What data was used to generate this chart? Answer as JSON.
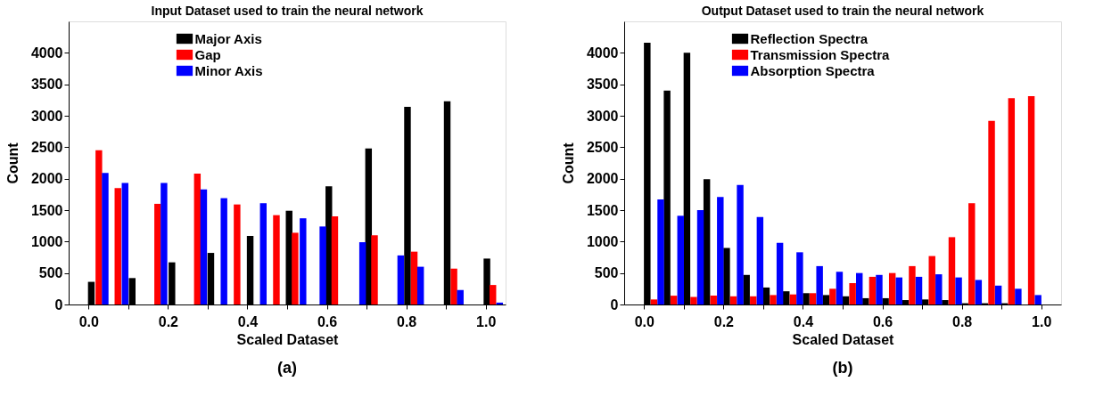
{
  "chart_data": [
    {
      "type": "bar",
      "title": "Input Dataset used to train the neural network",
      "xlabel": "Scaled Dataset",
      "ylabel": "Count",
      "xlim": [
        -0.05,
        1.05
      ],
      "ylim": [
        0,
        4500
      ],
      "xticks": [
        {
          "value": 0,
          "label": "0.0"
        },
        {
          "value": 0.1,
          "label": null
        },
        {
          "value": 0.2,
          "label": "0.2"
        },
        {
          "value": 0.3,
          "label": null
        },
        {
          "value": 0.4,
          "label": "0.4"
        },
        {
          "value": 0.5,
          "label": null
        },
        {
          "value": 0.6,
          "label": "0.6"
        },
        {
          "value": 0.7,
          "label": null
        },
        {
          "value": 0.8,
          "label": "0.8"
        },
        {
          "value": 0.9,
          "label": null
        },
        {
          "value": 1,
          "label": "1.0"
        }
      ],
      "yticks": [
        0,
        500,
        1000,
        1500,
        2000,
        2500,
        3000,
        3500,
        4000
      ],
      "legend": "top",
      "annotations": [
        "(a)"
      ],
      "series": [
        {
          "name": "Major Axis",
          "color": "#000000",
          "x": [
            0.007,
            0.11,
            0.21,
            0.308,
            0.407,
            0.505,
            0.605,
            0.705,
            0.803,
            0.903,
            1.003
          ],
          "values": [
            360,
            420,
            670,
            820,
            1090,
            1490,
            1880,
            2480,
            3140,
            3230,
            730
          ]
        },
        {
          "name": "Gap",
          "color": "#ff0000",
          "x": [
            0.026,
            0.074,
            0.174,
            0.274,
            0.374,
            0.473,
            0.52,
            0.62,
            0.72,
            0.82,
            0.92,
            1.018
          ],
          "values": [
            2450,
            1850,
            1600,
            2080,
            1590,
            1420,
            1140,
            1400,
            1100,
            840,
            570,
            310
          ]
        },
        {
          "name": "Minor Axis",
          "color": "#0000ff",
          "x": [
            0.042,
            0.092,
            0.19,
            0.29,
            0.341,
            0.44,
            0.54,
            0.59,
            0.69,
            0.786,
            0.836,
            0.936,
            1.035
          ],
          "values": [
            2090,
            1930,
            1930,
            1830,
            1690,
            1610,
            1370,
            1240,
            990,
            780,
            600,
            230,
            30
          ]
        }
      ]
    },
    {
      "type": "bar",
      "title": "Output Dataset used to train the neural network",
      "xlabel": "Scaled Dataset",
      "ylabel": "Count",
      "xlim": [
        -0.05,
        1.05
      ],
      "ylim": [
        0,
        4500
      ],
      "xticks": [
        {
          "value": 0,
          "label": "0.0"
        },
        {
          "value": 0.1,
          "label": null
        },
        {
          "value": 0.2,
          "label": "0.2"
        },
        {
          "value": 0.3,
          "label": null
        },
        {
          "value": 0.4,
          "label": "0.4"
        },
        {
          "value": 0.5,
          "label": null
        },
        {
          "value": 0.6,
          "label": "0.6"
        },
        {
          "value": 0.7,
          "label": null
        },
        {
          "value": 0.8,
          "label": "0.8"
        },
        {
          "value": 0.9,
          "label": null
        },
        {
          "value": 1,
          "label": "1.0"
        }
      ],
      "yticks": [
        0,
        500,
        1000,
        1500,
        2000,
        2500,
        3000,
        3500,
        4000
      ],
      "legend": "top",
      "annotations": [
        "(b)"
      ],
      "series": [
        {
          "name": "Reflection Spectra",
          "color": "#000000",
          "x": [
            0.008,
            0.058,
            0.108,
            0.158,
            0.208,
            0.258,
            0.308,
            0.358,
            0.408,
            0.458,
            0.508,
            0.558,
            0.608,
            0.658,
            0.708,
            0.758,
            0.808,
            0.858,
            0.908
          ],
          "values": [
            4160,
            3400,
            4000,
            1990,
            900,
            470,
            270,
            210,
            180,
            150,
            130,
            100,
            100,
            70,
            80,
            70,
            20,
            20,
            20
          ]
        },
        {
          "name": "Transmission Spectra",
          "color": "#ff0000",
          "x": [
            0.025,
            0.075,
            0.125,
            0.175,
            0.225,
            0.275,
            0.325,
            0.375,
            0.425,
            0.475,
            0.525,
            0.575,
            0.625,
            0.675,
            0.725,
            0.775,
            0.825,
            0.875,
            0.925,
            0.975
          ],
          "values": [
            80,
            140,
            120,
            140,
            130,
            130,
            150,
            160,
            180,
            250,
            340,
            440,
            500,
            610,
            770,
            1070,
            1610,
            2920,
            3280,
            3310
          ]
        },
        {
          "name": "Absorption Spectra",
          "color": "#0000ff",
          "x": [
            0.042,
            0.092,
            0.142,
            0.192,
            0.242,
            0.292,
            0.342,
            0.392,
            0.442,
            0.492,
            0.542,
            0.592,
            0.642,
            0.692,
            0.742,
            0.792,
            0.842,
            0.892,
            0.942,
            0.992
          ],
          "values": [
            1670,
            1410,
            1500,
            1710,
            1900,
            1390,
            980,
            830,
            610,
            520,
            500,
            470,
            430,
            440,
            480,
            430,
            390,
            300,
            250,
            150
          ]
        }
      ]
    }
  ]
}
